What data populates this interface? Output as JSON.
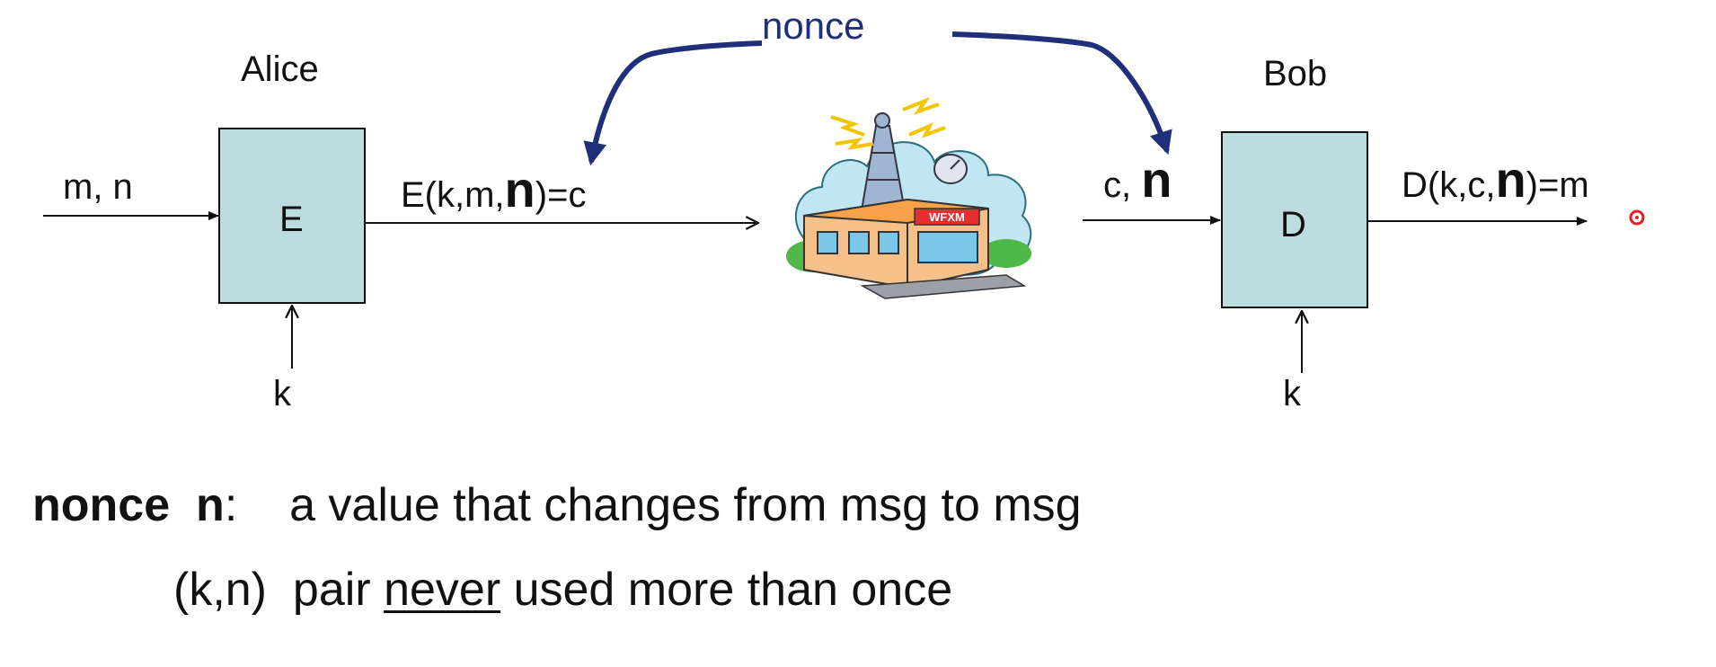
{
  "diagram": {
    "alice_label": "Alice",
    "bob_label": "Bob",
    "encrypt_box": "E",
    "decrypt_box": "D",
    "input_left": "m, n",
    "key_left": "k",
    "key_right": "k",
    "ciphertext_prefix": "E(k,m,",
    "ciphertext_n": "n",
    "ciphertext_suffix": ")=c",
    "bob_input_prefix": "c, ",
    "bob_input_n": "n",
    "decrypt_prefix": "D(k,c,",
    "decrypt_n": "n",
    "decrypt_suffix": ")=m",
    "nonce_top": "nonce",
    "station_sign": "WFXM"
  },
  "definition": {
    "term": "nonce",
    "symbol": "n",
    "colon": ":",
    "description": "a value that changes from msg to msg",
    "line2_prefix": "(k,n)  pair ",
    "line2_underlined": "never",
    "line2_suffix": " used more than once"
  },
  "colors": {
    "box_fill": "#bcdcdf",
    "nonce_arrow": "#1f2f7a",
    "pointer_dot": "#e02020"
  }
}
